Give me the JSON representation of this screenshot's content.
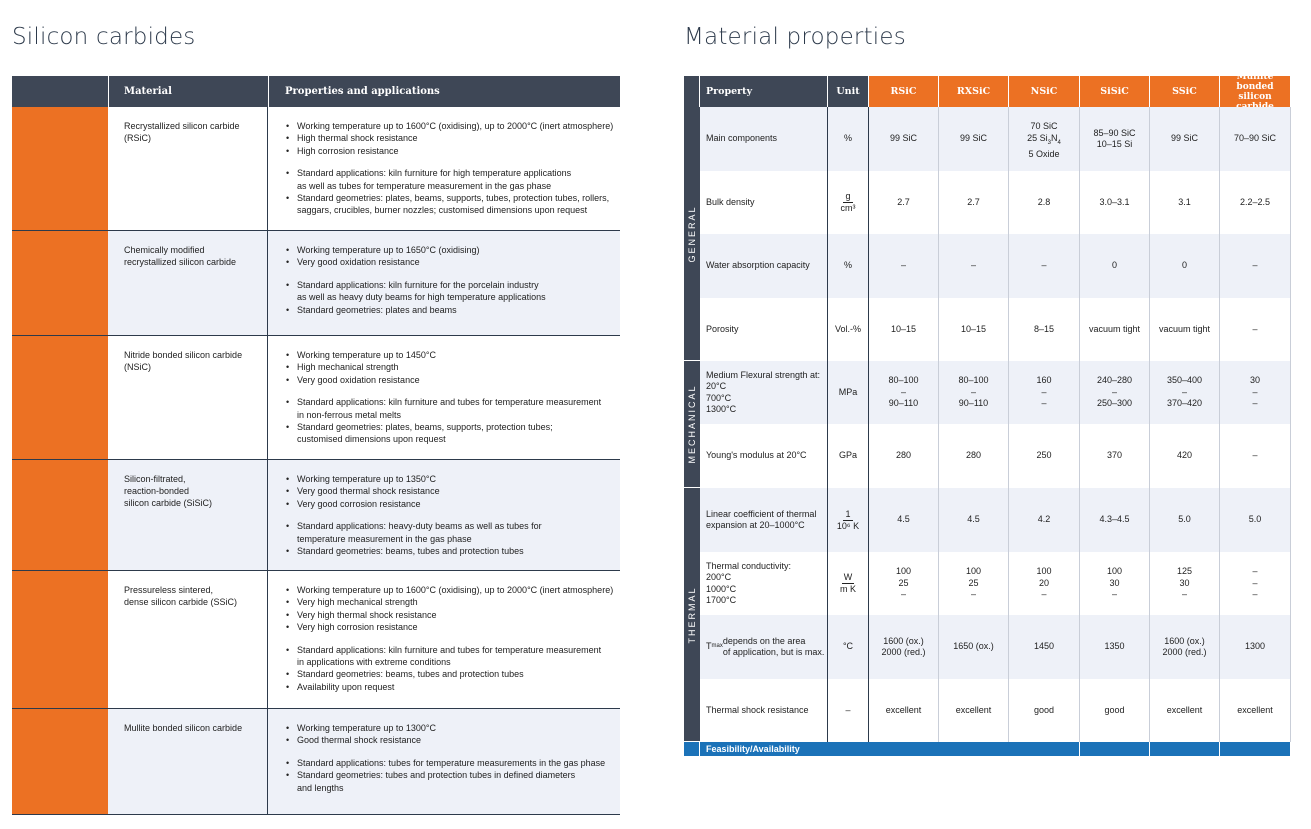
{
  "left": {
    "title": "Silicon carbides",
    "header": {
      "material": "Material",
      "properties": "Properties and applications"
    },
    "rows": [
      {
        "material": "Recrystallized silicon carbide\n(RSiC)",
        "groups": [
          [
            "Working temperature up to 1600°C (oxidising), up to 2000°C (inert atmosphere)",
            "High thermal shock resistance",
            "High corrosion resistance"
          ],
          [
            "Standard applications: kiln furniture for high temperature applications\nas well as tubes for temperature measurement in the gas phase",
            "Standard geometries: plates, beams, supports, tubes, protection tubes, rollers,\nsaggars, crucibles, burner nozzles; customised dimensions upon request"
          ]
        ]
      },
      {
        "material": "Chemically modified\nrecrystallized silicon carbide",
        "groups": [
          [
            "Working temperature up to 1650°C (oxidising)",
            "Very good oxidation resistance"
          ],
          [
            "Standard applications: kiln furniture for the porcelain industry\nas well as heavy duty beams for high temperature applications",
            "Standard geometries: plates and beams"
          ]
        ]
      },
      {
        "material": "Nitride bonded silicon carbide\n(NSiC)",
        "groups": [
          [
            "Working temperature up to 1450°C",
            "High mechanical strength",
            "Very good oxidation resistance"
          ],
          [
            "Standard applications: kiln furniture and tubes for temperature measurement\nin non-ferrous metal melts",
            "Standard geometries: plates, beams, supports, protection tubes;\ncustomised dimensions upon request"
          ]
        ]
      },
      {
        "material": "Silicon-filtrated,\nreaction-bonded\nsilicon carbide (SiSiC)",
        "groups": [
          [
            "Working temperature up to 1350°C",
            "Very good thermal shock resistance",
            "Very good corrosion resistance"
          ],
          [
            "Standard applications: heavy-duty beams as well as tubes for\ntemperature measurement in the gas phase",
            "Standard geometries: beams, tubes and protection tubes"
          ]
        ]
      },
      {
        "material": "Pressureless sintered,\ndense silicon carbide (SSiC)",
        "groups": [
          [
            "Working temperature up to 1600°C (oxidising), up to 2000°C (inert atmosphere)",
            "Very high mechanical strength",
            "Very high thermal shock resistance",
            "Very high corrosion resistance"
          ],
          [
            "Standard applications: kiln furniture and tubes for temperature measurement\nin applications with extreme conditions",
            "Standard geometries: beams, tubes and protection tubes",
            "Availability upon request"
          ]
        ]
      },
      {
        "material": "Mullite bonded silicon carbide",
        "groups": [
          [
            "Working temperature up to 1300°C",
            "Good thermal shock resistance"
          ],
          [
            "Standard applications: tubes for temperature measurements in the gas phase",
            "Standard geometries: tubes and protection tubes in defined diameters\nand lengths"
          ]
        ]
      }
    ]
  },
  "right": {
    "title": "Material properties",
    "header": {
      "property": "Property",
      "unit": "Unit",
      "materials": [
        "RSiC",
        "RXSiC",
        "NSiC",
        "SiSiC",
        "SSiC",
        "Mullite bonded\nsilicon carbide"
      ]
    },
    "groups": [
      {
        "label": "GENERAL",
        "rows": [
          {
            "property": "Main components",
            "unit": "%",
            "values": [
              "99 SiC",
              "99 SiC",
              "70 SiC\n25 Si3N4\n5 Oxide",
              "85–90 SiC\n10–15 Si",
              "99 SiC",
              "70–90 SiC"
            ]
          },
          {
            "property": "Bulk density",
            "unit_num": "g",
            "unit_den": "cm³",
            "values": [
              "2.7",
              "2.7",
              "2.8",
              "3.0–3.1",
              "3.1",
              "2.2–2.5"
            ]
          },
          {
            "property": "Water absorption capacity",
            "unit": "%",
            "values": [
              "–",
              "–",
              "–",
              "0",
              "0",
              "–"
            ]
          },
          {
            "property": "Porosity",
            "unit": "Vol.-%",
            "values": [
              "10–15",
              "10–15",
              "8–15",
              "vacuum tight",
              "vacuum tight",
              "–"
            ]
          }
        ]
      },
      {
        "label": "MECHANICAL",
        "rows": [
          {
            "property": "Medium Flexural strength at:\n20°C\n700°C\n1300°C",
            "unit": "MPa",
            "values": [
              "80–100\n–\n90–110",
              "80–100\n–\n90–110",
              "160\n–\n–",
              "240–280\n–\n250–300",
              "350–400\n–\n370–420",
              "30\n–\n–"
            ]
          },
          {
            "property": "Young's modulus at 20°C",
            "unit": "GPa",
            "values": [
              "280",
              "280",
              "250",
              "370",
              "420",
              "–"
            ]
          }
        ]
      },
      {
        "label": "THERMAL",
        "rows": [
          {
            "property": "Linear coefficient of thermal\nexpansion at 20–1000°C",
            "unit_num": "1",
            "unit_den": "10⁶ K",
            "values": [
              "4.5",
              "4.5",
              "4.2",
              "4.3–4.5",
              "5.0",
              "5.0"
            ]
          },
          {
            "property": "Thermal conductivity:\n200°C\n1000°C\n1700°C",
            "unit_num": "W",
            "unit_den": "m K",
            "values": [
              "100\n25\n–",
              "100\n25\n–",
              "100\n20\n–",
              "100\n30\n–",
              "125\n30\n–",
              "–\n–\n–"
            ]
          },
          {
            "property": "Tmax depends on the area\nof application, but is max.",
            "unit": "°C",
            "values": [
              "1600 (ox.)\n2000 (red.)",
              "1650 (ox.)",
              "1450",
              "1350",
              "1600 (ox.)\n2000 (red.)",
              "1300"
            ]
          },
          {
            "property": "Thermal shock resistance",
            "unit": "–",
            "values": [
              "excellent",
              "excellent",
              "good",
              "good",
              "excellent",
              "excellent"
            ]
          }
        ]
      }
    ],
    "footer": "Feasibility/Availability"
  }
}
